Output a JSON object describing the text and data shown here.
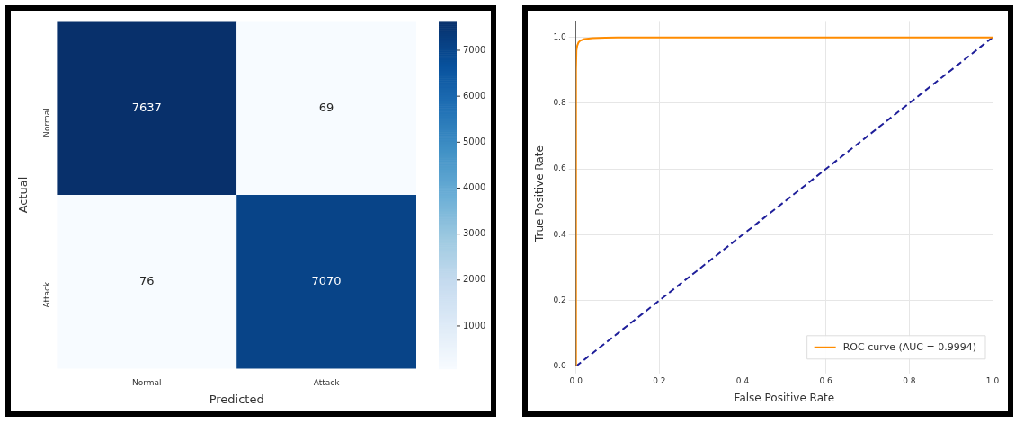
{
  "chart_data": [
    {
      "type": "heatmap",
      "xlabel": "Predicted",
      "ylabel": "Actual",
      "categories": [
        "Normal",
        "Attack"
      ],
      "y_categories": [
        "Normal",
        "Attack"
      ],
      "cells": [
        [
          7637,
          69
        ],
        [
          76,
          7070
        ]
      ],
      "data_labels": true,
      "clim": [
        69,
        7637
      ],
      "cticks": [
        1000,
        2000,
        3000,
        4000,
        5000,
        6000,
        7000
      ]
    },
    {
      "type": "line",
      "xlabel": "False Positive Rate",
      "ylabel": "True Positive Rate",
      "xlim": [
        0,
        1
      ],
      "ylim": [
        0,
        1.05
      ],
      "xticks": [
        {
          "value": 0,
          "label": "0.0"
        },
        0.2,
        0.4,
        0.6,
        0.8,
        {
          "value": 1,
          "label": "1.0"
        }
      ],
      "yticks": [
        {
          "value": 0,
          "label": "0.0"
        },
        0.2,
        0.4,
        0.6,
        0.8,
        {
          "value": 1,
          "label": "1.0"
        }
      ],
      "grid": true,
      "legend": "bottom right",
      "series": [
        {
          "name": "ROC curve (AUC = 0.9994)",
          "color": "#ff8c00",
          "x": [
            0,
            0,
            0.001,
            0.003,
            0.006,
            0.01,
            0.02,
            0.04,
            0.07,
            0.1,
            1
          ],
          "values": [
            0,
            0.9,
            0.96,
            0.975,
            0.985,
            0.99,
            0.995,
            0.998,
            0.999,
            1,
            1
          ]
        },
        {
          "color": "#1f1f9a",
          "x": [
            0,
            1
          ],
          "values": [
            0,
            1
          ],
          "line_style": "dashed"
        }
      ]
    }
  ]
}
